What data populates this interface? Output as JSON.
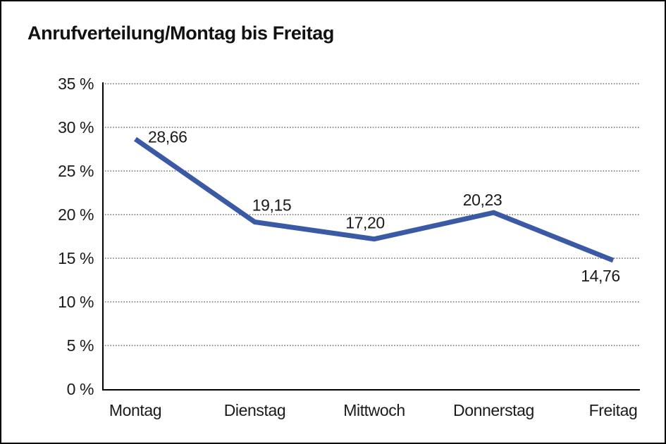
{
  "chart_data": {
    "type": "line",
    "title": "Anrufverteilung/Montag bis Freitag",
    "categories": [
      "Montag",
      "Dienstag",
      "Mittwoch",
      "Donnerstag",
      "Freitag"
    ],
    "series": [
      {
        "name": "Anrufverteilung",
        "values": [
          28.66,
          19.15,
          17.2,
          20.23,
          14.76
        ]
      }
    ],
    "value_labels": [
      "28,66",
      "19,15",
      "17,20",
      "20,23",
      "14,76"
    ],
    "xlabel": "",
    "ylabel": "",
    "ylim": [
      0,
      35
    ],
    "ytick_step": 5,
    "ytick_labels": [
      "0 %",
      "5 %",
      "10 %",
      "15 %",
      "20 %",
      "25 %",
      "30 %",
      "35 %"
    ],
    "grid": "horizontal-dotted",
    "legend_position": "none",
    "line_color": "#3B5AA5",
    "axis_color": "#000000",
    "gridline_color": "#555555",
    "label_color": "#1a1a1a"
  }
}
